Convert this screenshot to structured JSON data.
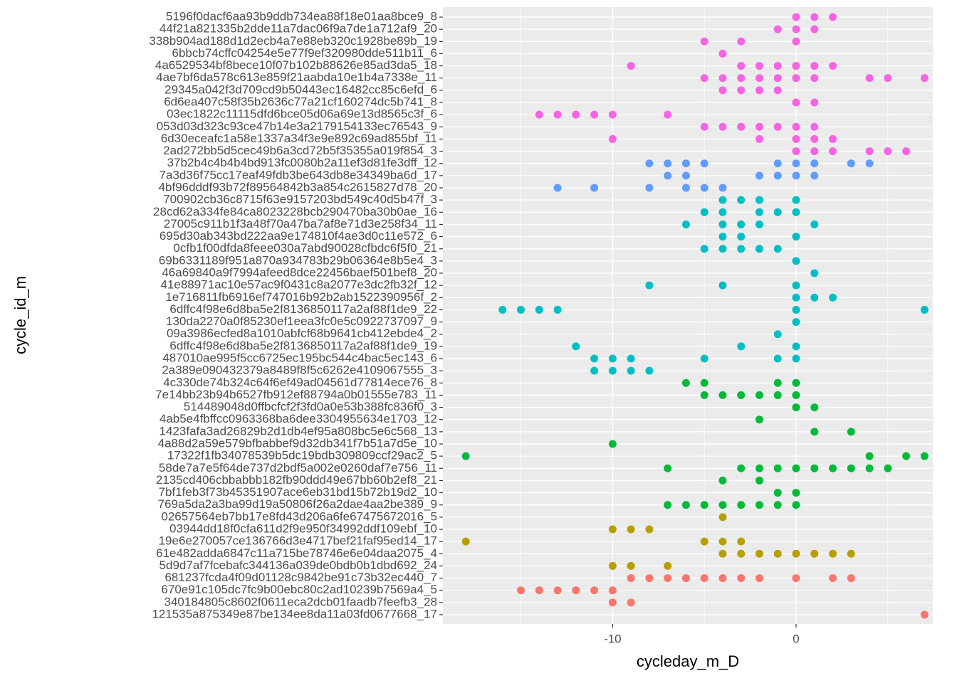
{
  "chart_data": {
    "type": "strip",
    "x_label": "cycleday_m_D",
    "y_label": "cycle_id_m",
    "xlim": [
      -19.25,
      7.45
    ],
    "xticks": [
      -10,
      0
    ],
    "grid": true,
    "categories": [
      "5196f0dacf6aa93b9ddb734ea88f18e01aa8bce9_8",
      "44f21a821335b2dde11a7dac06f9a7de1a712af9_20",
      "338b904ad188d1d2ecb4a7e88eb320c1928be89b_19",
      "6bbcb74cffc04254e5e77f9ef320980dde511b11_6",
      "4a6529534bf8bece10f07b102b88626e85ad3da5_18",
      "4ae7bf6da578c613e859f21aabda10e1b4a7338e_11",
      "29345a042f3d709cd9b50443ec16482cc85c6efd_6",
      "6d6ea407c58f35b2636c77a21cf160274dc5b741_8",
      "03ec1822c11115dfd6bce05d06a69e13d8565c3f_6",
      "053d03d323c93ce47b14e3a2179154133ec76543_9",
      "6d30eceafc1a58e1337a34f3e9e892c69ad855bf_11",
      "2ad272bb5d5cec49b6a3cd72b5f35355a019f854_3",
      "37b2b4c4b4b4bd913fc0080b2a11ef3d81fe3dff_12",
      "7a3d36f75cc17eaf49fdb3be643db8e34349ba6d_17",
      "4bf96dddf93b72f89564842b3a854c2615827d78_20",
      "700902cb36c8715f63e9157203bd549c40d5b47f_3",
      "28cd62a334fe84ca8023228bcb290470ba30b0ae_16",
      "27005c911b1f3a48f70a47ba7af8e71d3e258f34_11",
      "695d30ab343bd222aa9e174810f4ae3d0c11e572_6",
      "0cfb1f00dfda8feee030a7abd90028cfbdc6f5f0_21",
      "69b6331189f951a870a934783b29b06364e8b5e4_3",
      "46a69840a9f7994afeed8dce22456baef501bef8_20",
      "41e88971ac10e57ac9f0431c8a2077e3dc2fb32f_12",
      "1e716811fb6916ef747016b92b2ab1522390956f_2",
      "6dffc4f98e6d8ba5e2f8136850117a2af88f1de9_22",
      "130da2270a0f85230ef1eea3fc0e5c0922737097_9",
      "09a3986ecfed8a1010abfcf68b9641cb412ebde4_2",
      "6dffc4f98e6d8ba5e2f8136850117a2af88f1de9_19",
      "487010ae995f5cc6725ec195bc544c4bac5ec143_6",
      "2a389e090432379a8489f8f5c6262e4109067555_3",
      "4c330de74b324c64f6ef49ad04561d77814ece76_8",
      "7e14bb23b94b6527fb912ef88794a0b01555e783_11",
      "514489048d0ffbcfcf2f3fd0a0e53b388fc836f0_3",
      "4ab5e4fbffcc0963368ba6dee3304955634e1703_12",
      "1423fafa3ad26829b2d1db4ef95a808bc5e6c568_13",
      "4a88d2a59e579bfbabbef9d32db341f7b51a7d5e_10",
      "17322f1fb34078539b5dc19bdb309809ccf29ac2_5",
      "58de7a7e5f64de737d2bdf5a002e0260daf7e756_11",
      "2135cd406cbbabbb182fb90ddd49e67bb60b2ef8_21",
      "7bf1feb3f73b45351907ace6eb31bd15b72b19d2_10",
      "769a5da2a3ba99d19a50806f26a2dae4aa2be389_9",
      "02657564eb7bb17e8fd43d206a6fe67475672016_5",
      "03944dd18f0cfa611d2f9e950f34992ddf109ebf_10",
      "19e6e270057ce136766d3e4717bef21faf95ed14_17",
      "61e482adda6847c11a715be78746e6e04daa2075_4",
      "5d9d7af7fcebafc344136a039de0bdb0b1dbd692_24",
      "681237fcda4f09d01128c9842be91c73b32ec440_7",
      "670e91c105dc7fc9b00ebc80c2ad10239b7569a4_5",
      "340184805c8602f0611eca2dcb01faadb7feefb3_28",
      "121535a875349e87be134ee8da11a03fd0677668_17"
    ],
    "series": [
      {
        "color": "#F564E3",
        "values": [
          [
            0,
            1,
            2
          ],
          [
            -1,
            0,
            1
          ],
          [
            -5,
            -3,
            0
          ],
          [
            -4
          ],
          [
            -9,
            -3,
            -2,
            -1,
            0,
            1,
            2
          ],
          [
            -5,
            -4,
            -3,
            -2,
            -1,
            0,
            1,
            4,
            5,
            7
          ],
          [
            -4,
            -3,
            -2,
            -1
          ],
          [
            0,
            1
          ],
          [
            -14,
            -13,
            -12,
            -11,
            -10,
            -7
          ],
          [
            -5,
            -4,
            -3,
            -2,
            -1,
            0,
            1
          ],
          [
            -10,
            -2,
            0,
            1,
            2
          ],
          [
            0,
            1,
            2,
            4,
            5,
            6
          ],
          null,
          null,
          null,
          null,
          null,
          null,
          null,
          null,
          null,
          null,
          null,
          null,
          null,
          null,
          null,
          null,
          null,
          null,
          null,
          null,
          null,
          null,
          null,
          null,
          null,
          null,
          null,
          null,
          null,
          null,
          null,
          null,
          null,
          null,
          null,
          null,
          null,
          null
        ]
      },
      {
        "color": "#619CFF",
        "values": [
          null,
          null,
          null,
          null,
          null,
          null,
          null,
          null,
          null,
          null,
          null,
          null,
          [
            -8,
            -7,
            -6,
            -5,
            -1,
            0,
            1,
            3,
            4
          ],
          [
            -7,
            -6,
            -2,
            -1,
            0,
            1
          ],
          [
            -13,
            -11,
            -8,
            -6,
            -5,
            -4
          ],
          null,
          null,
          null,
          null,
          null,
          null,
          null,
          null,
          null,
          null,
          null,
          null,
          null,
          null,
          null,
          null,
          null,
          null,
          null,
          null,
          null,
          null,
          null,
          null,
          null,
          null,
          null,
          null,
          null,
          null,
          null,
          null,
          null,
          null,
          null
        ]
      },
      {
        "color": "#00BFC4",
        "values": [
          null,
          null,
          null,
          null,
          null,
          null,
          null,
          null,
          null,
          null,
          null,
          null,
          null,
          null,
          null,
          [
            -4,
            -3,
            -2,
            0
          ],
          [
            -5,
            -4,
            -2,
            -1,
            0
          ],
          [
            -6,
            -4,
            -3,
            -2,
            1
          ],
          [
            -4,
            -3,
            0
          ],
          [
            -5,
            -4,
            -3,
            -2,
            -1
          ],
          [
            0
          ],
          [
            1
          ],
          [
            -8,
            -4,
            0
          ],
          [
            0,
            1,
            2
          ],
          [
            -16,
            -15,
            -14,
            -13,
            0,
            7
          ],
          [
            0
          ],
          [
            -1
          ],
          [
            -12,
            -3,
            0
          ],
          [
            -11,
            -10,
            -9,
            -5,
            -1,
            0
          ],
          [
            -11,
            -10,
            -9,
            -8
          ],
          null,
          null,
          null,
          null,
          null,
          null,
          null,
          null,
          null,
          null,
          null,
          null,
          null,
          null,
          null,
          null,
          null,
          null,
          null,
          null
        ]
      },
      {
        "color": "#00BA38",
        "values": [
          null,
          null,
          null,
          null,
          null,
          null,
          null,
          null,
          null,
          null,
          null,
          null,
          null,
          null,
          null,
          null,
          null,
          null,
          null,
          null,
          null,
          null,
          null,
          null,
          null,
          null,
          null,
          null,
          null,
          null,
          [
            -6,
            -5,
            -1,
            0
          ],
          [
            -5,
            -4,
            -3,
            -2,
            -1,
            0
          ],
          [
            0,
            1
          ],
          [
            -2
          ],
          [
            1,
            3
          ],
          [
            -10
          ],
          [
            -18,
            4,
            6,
            7
          ],
          [
            -7,
            -3,
            -2,
            -1,
            0,
            1,
            2,
            3,
            4,
            5
          ],
          [
            -4,
            -2
          ],
          [
            -1,
            0
          ],
          [
            -7,
            -6,
            -5,
            -4,
            -3,
            -2,
            -1,
            0
          ],
          null,
          null,
          null,
          null,
          null,
          null,
          null,
          null,
          null
        ]
      },
      {
        "color": "#B79F00",
        "values": [
          null,
          null,
          null,
          null,
          null,
          null,
          null,
          null,
          null,
          null,
          null,
          null,
          null,
          null,
          null,
          null,
          null,
          null,
          null,
          null,
          null,
          null,
          null,
          null,
          null,
          null,
          null,
          null,
          null,
          null,
          null,
          null,
          null,
          null,
          null,
          null,
          null,
          null,
          null,
          null,
          null,
          [
            -4
          ],
          [
            -10,
            -9,
            -8
          ],
          [
            -18,
            -5,
            -4,
            -3
          ],
          [
            -4,
            -3,
            -2,
            -1,
            0,
            1,
            2,
            3
          ],
          [
            -10,
            -9,
            -7
          ],
          null,
          null,
          null,
          null
        ]
      },
      {
        "color": "#F8766D",
        "values": [
          null,
          null,
          null,
          null,
          null,
          null,
          null,
          null,
          null,
          null,
          null,
          null,
          null,
          null,
          null,
          null,
          null,
          null,
          null,
          null,
          null,
          null,
          null,
          null,
          null,
          null,
          null,
          null,
          null,
          null,
          null,
          null,
          null,
          null,
          null,
          null,
          null,
          null,
          null,
          null,
          null,
          null,
          null,
          null,
          null,
          null,
          [
            -9,
            -8,
            -7,
            -6,
            -5,
            -4,
            -3,
            -2,
            0,
            2,
            3
          ],
          [
            -15,
            -14,
            -13,
            -12,
            -11,
            -10
          ],
          [
            -10,
            -9
          ],
          [
            7
          ]
        ]
      }
    ]
  }
}
